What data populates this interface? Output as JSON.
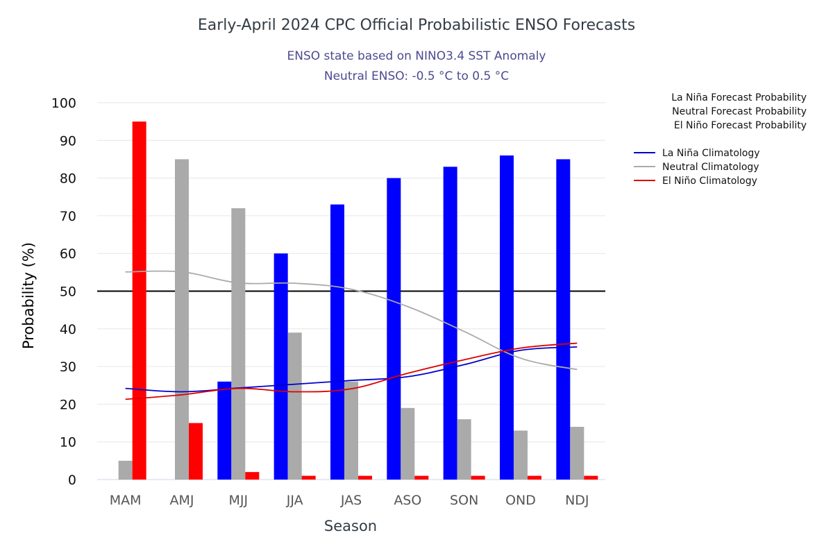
{
  "chart_data": {
    "type": "bar",
    "title": "Early-April 2024 CPC Official Probabilistic ENSO Forecasts",
    "subtitle": [
      "ENSO state based on NINO3.4 SST Anomaly",
      "Neutral ENSO: -0.5 °C to 0.5 °C"
    ],
    "xlabel": "Season",
    "ylabel": "Probability (%)",
    "ylim": [
      0,
      100
    ],
    "yticks": [
      0,
      10,
      20,
      30,
      40,
      50,
      60,
      70,
      80,
      90,
      100
    ],
    "reference_line": 50,
    "grid": true,
    "legend_placement": "right",
    "categories": [
      "MAM",
      "AMJ",
      "MJJ",
      "JJA",
      "JAS",
      "ASO",
      "SON",
      "OND",
      "NDJ"
    ],
    "series": [
      {
        "name": "La Niña Forecast Probability",
        "kind": "bar",
        "color": "#0000ff",
        "values": [
          0,
          0,
          26,
          60,
          73,
          80,
          83,
          86,
          85
        ]
      },
      {
        "name": "Neutral Forecast Probability",
        "kind": "bar",
        "color": "#aaaaaa",
        "values": [
          5,
          85,
          72,
          39,
          26,
          19,
          16,
          13,
          14
        ]
      },
      {
        "name": "El Niño Forecast Probability",
        "kind": "bar",
        "color": "#ff0000",
        "values": [
          95,
          15,
          2,
          1,
          1,
          1,
          1,
          1,
          1
        ]
      },
      {
        "name": "La Niña Climatology",
        "kind": "line",
        "color": "#0000cc",
        "values": [
          24.2,
          23.3,
          24.3,
          25.3,
          26.3,
          27.3,
          30.5,
          34.3,
          35.2
        ]
      },
      {
        "name": "Neutral Climatology",
        "kind": "line",
        "color": "#aaaaaa",
        "values": [
          55.1,
          55.1,
          52.2,
          52.1,
          50.5,
          45.9,
          39.3,
          32.2,
          29.2
        ]
      },
      {
        "name": "El Niño Climatology",
        "kind": "line",
        "color": "#dd0000",
        "values": [
          21.3,
          22.5,
          24.2,
          23.3,
          24.1,
          28.2,
          31.8,
          34.9,
          36.2
        ]
      }
    ]
  }
}
